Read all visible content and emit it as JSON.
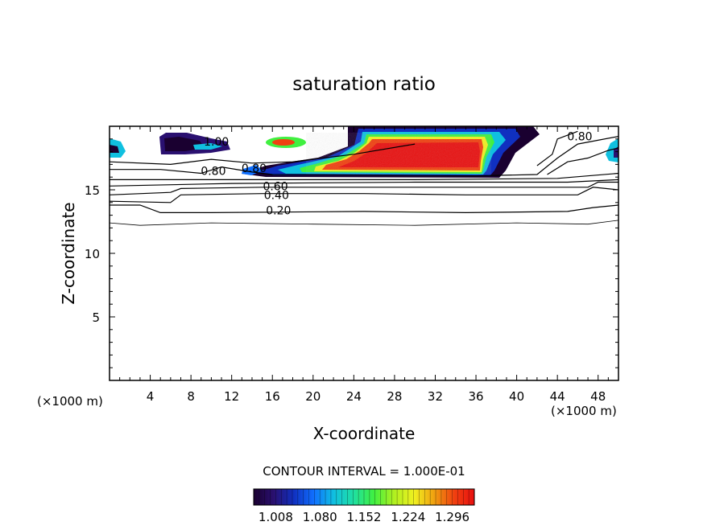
{
  "chart_data": {
    "type": "heatmap",
    "title": "saturation ratio",
    "xlabel": "X-coordinate",
    "ylabel": "Z-coordinate",
    "x_unit_left": "(×1000 m)",
    "x_unit_right": "(×1000 m)",
    "xlim": [
      0,
      50
    ],
    "ylim": [
      0,
      20
    ],
    "x_ticks": [
      4,
      8,
      12,
      16,
      20,
      24,
      28,
      32,
      36,
      40,
      44,
      48
    ],
    "y_ticks": [
      5,
      10,
      15
    ],
    "contour_interval_text": "CONTOUR INTERVAL = 1.000E-01",
    "colorbar": {
      "tick_labels": [
        "1.008",
        "1.080",
        "1.152",
        "1.224",
        "1.296"
      ],
      "colors": [
        "#1a0030",
        "#2a1070",
        "#1030c0",
        "#1070ff",
        "#10c0e0",
        "#20e0a0",
        "#40f040",
        "#b0f020",
        "#f0f020",
        "#f0a010",
        "#f04010",
        "#e81010"
      ]
    },
    "contour_labels": [
      {
        "text": "1.00",
        "x": 10.5,
        "z": 18.8
      },
      {
        "text": "0.80",
        "x": 10.2,
        "z": 16.5
      },
      {
        "text": "0.80",
        "x": 14.2,
        "z": 16.7
      },
      {
        "text": "0.60",
        "x": 16.3,
        "z": 15.3
      },
      {
        "text": "0.40",
        "x": 16.4,
        "z": 14.6
      },
      {
        "text": "0.20",
        "x": 16.6,
        "z": 13.4
      },
      {
        "text": "0.80",
        "x": 46.2,
        "z": 19.2
      }
    ],
    "contour_lines": [
      {
        "level": 0.2,
        "points": [
          [
            0,
            12.4
          ],
          [
            3,
            12.2
          ],
          [
            10,
            12.4
          ],
          [
            20,
            12.3
          ],
          [
            30,
            12.2
          ],
          [
            40,
            12.4
          ],
          [
            47,
            12.3
          ],
          [
            50,
            12.6
          ]
        ]
      },
      {
        "level": 0.2,
        "points": [
          [
            0,
            13.8
          ],
          [
            3,
            13.8
          ],
          [
            5,
            13.2
          ],
          [
            10,
            13.2
          ],
          [
            25,
            13.3
          ],
          [
            35,
            13.2
          ],
          [
            45,
            13.3
          ],
          [
            47.5,
            13.6
          ],
          [
            50,
            13.8
          ]
        ]
      },
      {
        "level": 0.4,
        "points": [
          [
            0,
            14.1
          ],
          [
            6,
            14.0
          ],
          [
            7,
            14.6
          ],
          [
            15,
            14.7
          ],
          [
            25,
            14.7
          ],
          [
            35,
            14.6
          ],
          [
            46,
            14.6
          ],
          [
            47.5,
            15.2
          ],
          [
            50,
            15.0
          ]
        ]
      },
      {
        "level": 0.6,
        "points": [
          [
            0,
            14.6
          ],
          [
            6,
            14.8
          ],
          [
            7,
            15.1
          ],
          [
            15,
            15.2
          ],
          [
            35,
            15.2
          ],
          [
            47,
            15.2
          ],
          [
            48,
            15.6
          ],
          [
            50,
            15.6
          ]
        ]
      },
      {
        "level": 0.7,
        "points": [
          [
            0,
            15.3
          ],
          [
            12,
            15.5
          ],
          [
            30,
            15.6
          ],
          [
            45,
            15.6
          ],
          [
            50,
            15.8
          ]
        ]
      },
      {
        "level": 0.8,
        "points": [
          [
            0,
            15.8
          ],
          [
            12,
            15.8
          ],
          [
            30,
            15.8
          ],
          [
            44,
            15.9
          ],
          [
            50,
            16.3
          ]
        ]
      },
      {
        "level": 0.8,
        "points": [
          [
            0,
            16.6
          ],
          [
            5,
            16.6
          ],
          [
            9,
            16.3
          ],
          [
            11,
            16.8
          ],
          [
            14,
            16.4
          ],
          [
            16,
            16.2
          ],
          [
            36,
            16.1
          ],
          [
            42,
            16.2
          ],
          [
            44,
            17.5
          ],
          [
            46,
            18.6
          ],
          [
            50,
            19.2
          ]
        ]
      },
      {
        "level": 0.9,
        "points": [
          [
            0,
            17.2
          ],
          [
            6,
            17.0
          ],
          [
            10,
            17.4
          ],
          [
            14,
            17.1
          ],
          [
            18,
            17.2
          ],
          [
            24,
            17.8
          ],
          [
            30,
            18.6
          ]
        ]
      },
      {
        "level": 0.8,
        "points": [
          [
            42,
            16.9
          ],
          [
            43.5,
            17.8
          ],
          [
            44,
            19.0
          ],
          [
            46,
            19.6
          ]
        ]
      },
      {
        "level": 0.8,
        "points": [
          [
            43,
            16.2
          ],
          [
            45,
            17.2
          ],
          [
            47,
            17.5
          ],
          [
            49,
            18.1
          ],
          [
            50,
            18.3
          ]
        ]
      }
    ]
  }
}
